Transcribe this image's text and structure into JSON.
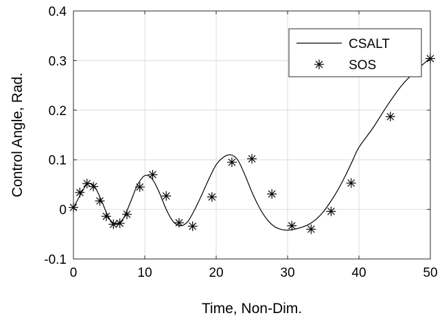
{
  "chart_data": {
    "type": "line",
    "xlabel": "Time, Non-Dim.",
    "ylabel": "Control Angle, Rad.",
    "xlim": [
      0,
      50
    ],
    "ylim": [
      -0.1,
      0.4
    ],
    "xticks": [
      0,
      10,
      20,
      30,
      40,
      50
    ],
    "yticks": [
      -0.1,
      0,
      0.1,
      0.2,
      0.3,
      0.4
    ],
    "xtick_labels": [
      "0",
      "10",
      "20",
      "30",
      "40",
      "50"
    ],
    "ytick_labels": [
      "-0.1",
      "0",
      "0.1",
      "0.2",
      "0.3",
      "0.4"
    ],
    "grid": true,
    "legend_position": "top-right",
    "series": [
      {
        "name": "CSALT",
        "style": "line",
        "color": "#000000",
        "x": [
          0,
          1,
          2,
          3,
          4,
          5,
          6,
          7,
          8,
          9,
          10,
          11,
          12,
          13,
          14,
          15,
          16,
          17,
          18,
          19,
          20,
          21,
          22,
          23,
          24,
          25,
          26,
          27,
          28,
          29,
          30,
          31,
          32,
          33,
          34,
          35,
          36,
          37,
          38,
          39,
          40,
          42,
          44,
          46,
          48,
          50
        ],
        "y": [
          0.003,
          0.03,
          0.052,
          0.045,
          0.015,
          -0.018,
          -0.03,
          -0.018,
          0.015,
          0.05,
          0.068,
          0.062,
          0.035,
          0.0,
          -0.025,
          -0.033,
          -0.025,
          0.0,
          0.03,
          0.062,
          0.09,
          0.105,
          0.11,
          0.1,
          0.07,
          0.035,
          0.005,
          -0.018,
          -0.033,
          -0.04,
          -0.042,
          -0.04,
          -0.036,
          -0.03,
          -0.02,
          -0.005,
          0.015,
          0.038,
          0.065,
          0.095,
          0.125,
          0.165,
          0.21,
          0.25,
          0.28,
          0.305
        ]
      },
      {
        "name": "SOS",
        "style": "marker",
        "marker": "asterisk",
        "color": "#000000",
        "x": [
          0.0,
          0.9,
          1.9,
          2.8,
          3.7,
          4.6,
          5.6,
          6.5,
          7.5,
          9.3,
          11.1,
          13.0,
          14.8,
          16.7,
          19.4,
          22.2,
          25.0,
          27.8,
          30.6,
          33.3,
          36.1,
          38.9,
          44.4,
          50.0
        ],
        "y": [
          0.004,
          0.034,
          0.052,
          0.046,
          0.017,
          -0.014,
          -0.03,
          -0.028,
          -0.01,
          0.045,
          0.07,
          0.027,
          -0.027,
          -0.034,
          0.025,
          0.095,
          0.102,
          0.031,
          -0.033,
          -0.04,
          -0.004,
          0.053,
          0.187,
          0.304
        ]
      }
    ]
  }
}
